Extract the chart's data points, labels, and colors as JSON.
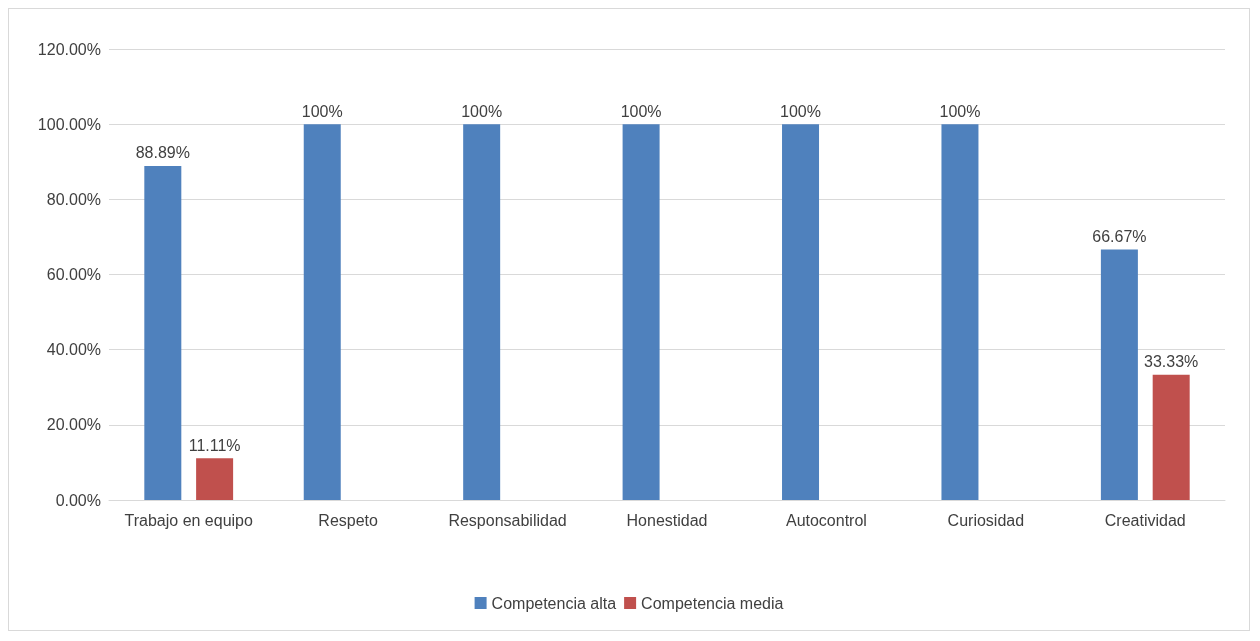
{
  "chart_data": {
    "type": "bar",
    "categories": [
      "Trabajo en equipo",
      "Respeto",
      "Responsabilidad",
      "Honestidad",
      "Autocontrol",
      "Curiosidad",
      "Creatividad"
    ],
    "series": [
      {
        "name": "Competencia alta",
        "color": "#4f81bd",
        "values": [
          88.89,
          100,
          100,
          100,
          100,
          100,
          66.67
        ],
        "value_labels": [
          "88.89%",
          "100%",
          "100%",
          "100%",
          "100%",
          "100%",
          "66.67%"
        ]
      },
      {
        "name": "Competencia media",
        "color": "#c0504d",
        "values": [
          11.11,
          null,
          null,
          null,
          null,
          null,
          33.33
        ],
        "value_labels": [
          "11.11%",
          null,
          null,
          null,
          null,
          null,
          "33.33%"
        ]
      }
    ],
    "ylim": [
      0,
      120
    ],
    "yticks": [
      {
        "value": 0,
        "label": "0.00%"
      },
      {
        "value": 20,
        "label": "20.00%"
      },
      {
        "value": 40,
        "label": "40.00%"
      },
      {
        "value": 60,
        "label": "60.00%"
      },
      {
        "value": 80,
        "label": "80.00%"
      },
      {
        "value": 100,
        "label": "100.00%"
      },
      {
        "value": 120,
        "label": "120.00%"
      }
    ],
    "grid": "y",
    "legend": "bottom"
  }
}
